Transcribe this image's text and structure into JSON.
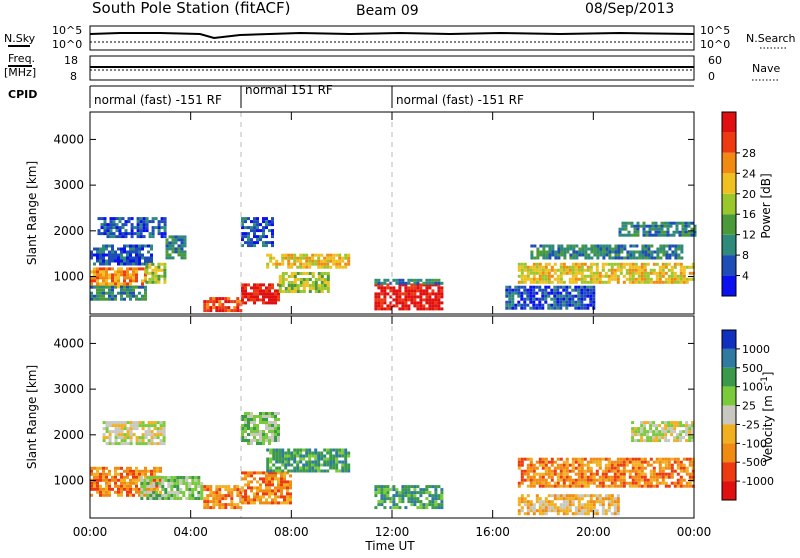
{
  "header": {
    "title": "South Pole Station (fitACF)",
    "beam": "Beam 09",
    "date": "08/Sep/2013"
  },
  "aux_labels": {
    "nsky": "N.Sky",
    "freq": "Freq.",
    "freq_unit": "[MHz]",
    "cpid": "CPID",
    "nsearch": "N.Search",
    "nave": "Nave",
    "nsky_ticks": [
      "10^5",
      "10^0"
    ],
    "freq_ticks": [
      "18",
      "8"
    ],
    "nsearch_ticks": [
      "10^5",
      "10^0"
    ],
    "nave_ticks": [
      "60",
      "0"
    ]
  },
  "cpid_segments": [
    {
      "label": "normal (fast) -151 RF",
      "start_hour": 0,
      "end_hour": 6
    },
    {
      "label": "normal 151 RF",
      "start_hour": 6,
      "end_hour": 12
    },
    {
      "label": "normal (fast) -151 RF",
      "start_hour": 12,
      "end_hour": 24
    }
  ],
  "chart_data": [
    {
      "type": "heatmap",
      "name": "power",
      "ylabel": "Slant Range [km]",
      "xlabel": "Time UT",
      "ylim": [
        180,
        4600
      ],
      "xlim": [
        0,
        24
      ],
      "yticks": [
        1000,
        2000,
        3000,
        4000
      ],
      "xticks": [
        "00:00",
        "04:00",
        "08:00",
        "12:00",
        "16:00",
        "20:00",
        "00:00"
      ],
      "colorbar": {
        "label": "Power [dB]",
        "ticks": [
          "4",
          "8",
          "12",
          "16",
          "20",
          "24",
          "28"
        ],
        "colors": [
          "#0a10ee",
          "#1f4db8",
          "#2e8a7a",
          "#4a9a3a",
          "#9ac72a",
          "#f0c020",
          "#f08a10",
          "#ee3a10",
          "#e01010"
        ]
      },
      "regions": [
        {
          "t0": 0.0,
          "t1": 2.2,
          "r0": 800,
          "r1": 1200,
          "level": 6
        },
        {
          "t0": 0.0,
          "t1": 2.2,
          "r0": 500,
          "r1": 800,
          "level": 2
        },
        {
          "t0": 0.0,
          "t1": 2.5,
          "r0": 1300,
          "r1": 1700,
          "level": 1
        },
        {
          "t0": 0.3,
          "t1": 3.0,
          "r0": 1900,
          "r1": 2300,
          "level": 1
        },
        {
          "t0": 2.2,
          "t1": 3.0,
          "r0": 900,
          "r1": 1300,
          "level": 4
        },
        {
          "t0": 3.0,
          "t1": 3.8,
          "r0": 1400,
          "r1": 1900,
          "level": 2
        },
        {
          "t0": 4.5,
          "t1": 6.0,
          "r0": 250,
          "r1": 550,
          "level": 7
        },
        {
          "t0": 6.0,
          "t1": 7.5,
          "r0": 400,
          "r1": 850,
          "level": 8
        },
        {
          "t0": 7.0,
          "t1": 10.3,
          "r0": 1200,
          "r1": 1500,
          "level": 5
        },
        {
          "t0": 7.5,
          "t1": 9.5,
          "r0": 700,
          "r1": 1100,
          "level": 4
        },
        {
          "t0": 6.0,
          "t1": 7.2,
          "r0": 1700,
          "r1": 2300,
          "level": 1
        },
        {
          "t0": 11.3,
          "t1": 14.0,
          "r0": 300,
          "r1": 850,
          "level": 8
        },
        {
          "t0": 11.3,
          "t1": 14.0,
          "r0": 850,
          "r1": 950,
          "level": 2
        },
        {
          "t0": 17.0,
          "t1": 24.0,
          "r0": 900,
          "r1": 1300,
          "level": 5
        },
        {
          "t0": 17.5,
          "t1": 23.5,
          "r0": 1400,
          "r1": 1700,
          "level": 2
        },
        {
          "t0": 21.0,
          "t1": 24.0,
          "r0": 1900,
          "r1": 2200,
          "level": 2
        },
        {
          "t0": 16.5,
          "t1": 20.0,
          "r0": 300,
          "r1": 800,
          "level": 1
        }
      ]
    },
    {
      "type": "heatmap",
      "name": "velocity",
      "ylabel": "Slant Range [km]",
      "xlabel": "Time UT",
      "ylim": [
        180,
        4600
      ],
      "xlim": [
        0,
        24
      ],
      "yticks": [
        1000,
        2000,
        3000,
        4000
      ],
      "xticks": [
        "00:00",
        "04:00",
        "08:00",
        "12:00",
        "16:00",
        "20:00",
        "00:00"
      ],
      "colorbar": {
        "label": "Velocity [m s^-1]",
        "ticks": [
          "1000",
          "500",
          "100",
          "25",
          "-25",
          "-100",
          "-500",
          "-1000"
        ],
        "colors": [
          "#1030c0",
          "#2f7aa0",
          "#3a9a4a",
          "#7acb3a",
          "#c8c8c0",
          "#f0b020",
          "#f08a10",
          "#ee3a10",
          "#e01010"
        ]
      },
      "regions": [
        {
          "t0": 0.0,
          "t1": 2.8,
          "r0": 700,
          "r1": 1300,
          "level": 6
        },
        {
          "t0": 0.5,
          "t1": 3.0,
          "r0": 1800,
          "r1": 2300,
          "level": 4
        },
        {
          "t0": 2.0,
          "t1": 4.5,
          "r0": 600,
          "r1": 1100,
          "level": 3
        },
        {
          "t0": 4.5,
          "t1": 6.0,
          "r0": 400,
          "r1": 900,
          "level": 6
        },
        {
          "t0": 6.0,
          "t1": 8.0,
          "r0": 500,
          "r1": 1200,
          "level": 6
        },
        {
          "t0": 7.0,
          "t1": 10.3,
          "r0": 1200,
          "r1": 1700,
          "level": 2
        },
        {
          "t0": 6.0,
          "t1": 7.5,
          "r0": 1800,
          "r1": 2500,
          "level": 3
        },
        {
          "t0": 11.3,
          "t1": 14.0,
          "r0": 400,
          "r1": 900,
          "level": 2
        },
        {
          "t0": 17.0,
          "t1": 24.0,
          "r0": 900,
          "r1": 1500,
          "level": 6
        },
        {
          "t0": 21.5,
          "t1": 24.0,
          "r0": 1900,
          "r1": 2300,
          "level": 4
        },
        {
          "t0": 17.0,
          "t1": 21.0,
          "r0": 300,
          "r1": 700,
          "level": 5
        }
      ]
    }
  ]
}
